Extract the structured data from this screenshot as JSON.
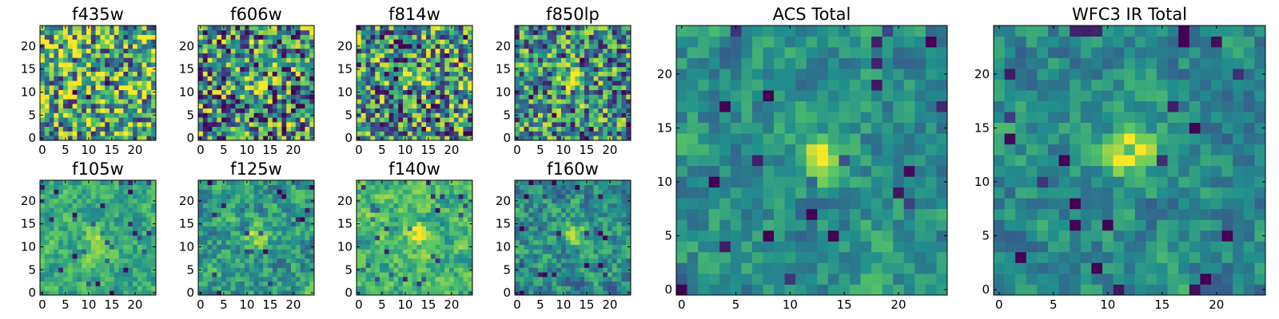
{
  "figure": {
    "description_type": "grid of filter cutout images",
    "colormap": "viridis",
    "colormap_stops": [
      "#440154",
      "#3b528b",
      "#21908d",
      "#5dc963",
      "#fde725"
    ]
  },
  "chart_data": [
    {
      "type": "heatmap",
      "title": "f435w",
      "xticks": [
        0,
        5,
        10,
        15,
        20
      ],
      "yticks": [
        0,
        5,
        10,
        15,
        20
      ],
      "xlim": [
        0,
        25
      ],
      "ylim": [
        0,
        25
      ],
      "grid_size": 25,
      "peak": [
        12,
        12
      ],
      "peak_strength": 0.0,
      "noise": 1.0,
      "base": 0.62,
      "seed": 11
    },
    {
      "type": "heatmap",
      "title": "f606w",
      "xticks": [
        0,
        5,
        10,
        15,
        20
      ],
      "yticks": [
        0,
        5,
        10,
        15,
        20
      ],
      "xlim": [
        0,
        25
      ],
      "ylim": [
        0,
        25
      ],
      "grid_size": 25,
      "peak": [
        12,
        12
      ],
      "peak_strength": 0.35,
      "noise": 1.0,
      "base": 0.5,
      "seed": 22
    },
    {
      "type": "heatmap",
      "title": "f814w",
      "xticks": [
        0,
        5,
        10,
        15,
        20
      ],
      "yticks": [
        0,
        5,
        10,
        15,
        20
      ],
      "xlim": [
        0,
        25
      ],
      "ylim": [
        0,
        25
      ],
      "grid_size": 25,
      "peak": [
        13,
        13
      ],
      "peak_strength": 0.35,
      "noise": 1.0,
      "base": 0.52,
      "seed": 33
    },
    {
      "type": "heatmap",
      "title": "f850lp",
      "xticks": [
        0,
        5,
        10,
        15,
        20
      ],
      "yticks": [
        0,
        5,
        10,
        15,
        20
      ],
      "xlim": [
        0,
        25
      ],
      "ylim": [
        0,
        25
      ],
      "grid_size": 25,
      "peak": [
        12,
        13
      ],
      "peak_strength": 0.55,
      "noise": 0.9,
      "base": 0.5,
      "seed": 44
    },
    {
      "type": "heatmap",
      "title": "f105w",
      "xticks": [
        0,
        5,
        10,
        15,
        20
      ],
      "yticks": [
        0,
        5,
        10,
        15,
        20
      ],
      "xlim": [
        0,
        25
      ],
      "ylim": [
        0,
        25
      ],
      "grid_size": 25,
      "peak": [
        12,
        12
      ],
      "peak_strength": 0.35,
      "noise": 0.55,
      "base": 0.62,
      "seed": 55
    },
    {
      "type": "heatmap",
      "title": "f125w",
      "xticks": [
        0,
        5,
        10,
        15,
        20
      ],
      "yticks": [
        0,
        5,
        10,
        15,
        20
      ],
      "xlim": [
        0,
        25
      ],
      "ylim": [
        0,
        25
      ],
      "grid_size": 25,
      "peak": [
        12,
        12
      ],
      "peak_strength": 0.35,
      "noise": 0.7,
      "base": 0.55,
      "seed": 66
    },
    {
      "type": "heatmap",
      "title": "f140w",
      "xticks": [
        0,
        5,
        10,
        15,
        20
      ],
      "yticks": [
        0,
        5,
        10,
        15,
        20
      ],
      "xlim": [
        0,
        25
      ],
      "ylim": [
        0,
        25
      ],
      "grid_size": 25,
      "peak": [
        13,
        13
      ],
      "peak_strength": 0.3,
      "noise": 0.6,
      "base": 0.65,
      "seed": 77
    },
    {
      "type": "heatmap",
      "title": "f160w",
      "xticks": [
        0,
        5,
        10,
        15,
        20
      ],
      "yticks": [
        0,
        5,
        10,
        15,
        20
      ],
      "xlim": [
        0,
        25
      ],
      "ylim": [
        0,
        25
      ],
      "grid_size": 25,
      "peak": [
        12,
        13
      ],
      "peak_strength": 0.5,
      "noise": 0.7,
      "base": 0.48,
      "seed": 88
    },
    {
      "type": "heatmap",
      "title": "ACS Total",
      "xticks": [
        0,
        5,
        10,
        15,
        20
      ],
      "yticks": [
        0,
        5,
        10,
        15,
        20
      ],
      "xlim": [
        0,
        25
      ],
      "ylim": [
        0,
        25
      ],
      "grid_size": 25,
      "peak": [
        13,
        12
      ],
      "peak_strength": 0.55,
      "noise": 0.55,
      "base": 0.5,
      "seed": 99
    },
    {
      "type": "heatmap",
      "title": "WFC3 IR Total",
      "xticks": [
        0,
        5,
        10,
        15,
        20
      ],
      "yticks": [
        0,
        5,
        10,
        15,
        20
      ],
      "xlim": [
        0,
        25
      ],
      "ylim": [
        0,
        25
      ],
      "grid_size": 25,
      "peak": [
        12,
        13
      ],
      "peak_strength": 0.6,
      "noise": 0.55,
      "base": 0.48,
      "seed": 111
    }
  ]
}
